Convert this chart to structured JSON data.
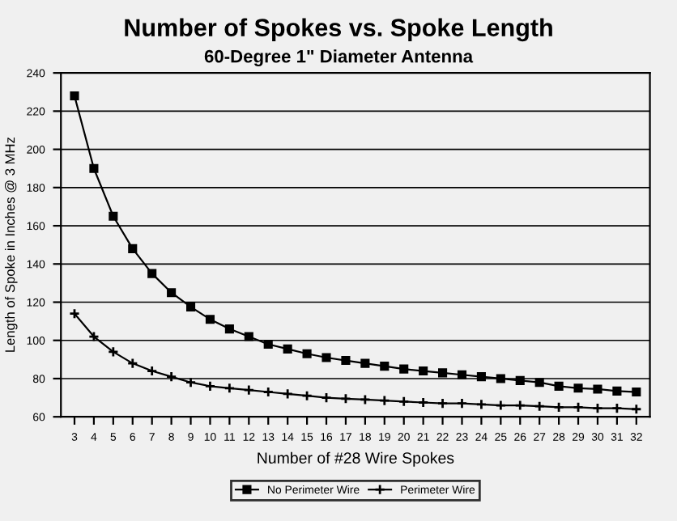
{
  "chart_data": {
    "type": "line",
    "title": "Number of Spokes vs. Spoke Length",
    "subtitle": "60-Degree 1\" Diameter Antenna",
    "xlabel": "Number of #28 Wire Spokes",
    "ylabel": "Length of Spoke in Inches @ 3 MHz",
    "categories": [
      "3",
      "4",
      "5",
      "6",
      "7",
      "8",
      "9",
      "10",
      "11",
      "12",
      "13",
      "14",
      "15",
      "16",
      "17",
      "18",
      "19",
      "20",
      "21",
      "22",
      "23",
      "24",
      "25",
      "26",
      "27",
      "28",
      "29",
      "30",
      "31",
      "32"
    ],
    "series": [
      {
        "name": "No Perimeter Wire",
        "color": "#000000",
        "marker": "square",
        "values": [
          228,
          190,
          165,
          148,
          135,
          125,
          117.5,
          111,
          106,
          102,
          98,
          95.5,
          93,
          91,
          89.5,
          88,
          86.5,
          85,
          84,
          83,
          82,
          81,
          80,
          79,
          78,
          76,
          75,
          74.5,
          73.5,
          73
        ]
      },
      {
        "name": "Perimeter Wire",
        "color": "#000000",
        "marker": "cross",
        "values": [
          114,
          102,
          94,
          88,
          84,
          81,
          78,
          76,
          75,
          74,
          73,
          72,
          71,
          70,
          69.5,
          69,
          68.5,
          68,
          67.5,
          67,
          67,
          66.5,
          66,
          66,
          65.5,
          65,
          65,
          64.5,
          64.5,
          64
        ]
      }
    ],
    "ylim": [
      60,
      240
    ],
    "yticks": [
      60,
      80,
      100,
      120,
      140,
      160,
      180,
      200,
      220,
      240
    ],
    "grid": "y",
    "legend": "bottom",
    "line_style": "solid"
  }
}
